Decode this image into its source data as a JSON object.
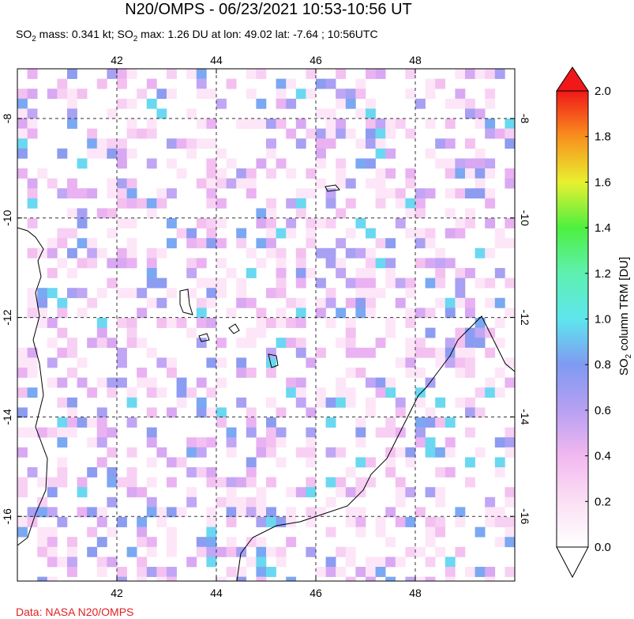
{
  "header": {
    "title": "N20/OMPS - 06/23/2021 10:53-10:56 UT",
    "subtitle": {
      "parts": [
        "SO",
        "2",
        " mass: 0.341 kt; SO",
        "2",
        " max: 1.26 DU at lon: 49.02 lat: -7.64 ; 10:56UTC"
      ]
    }
  },
  "map": {
    "lonlim": [
      40,
      50
    ],
    "latlim": [
      -17.3,
      -7
    ],
    "lonticks": [
      42,
      44,
      46,
      48
    ],
    "latticks": [
      -8,
      -10,
      -12,
      -14,
      -16
    ]
  },
  "colorbar": {
    "label": {
      "parts": [
        "SO",
        "2",
        " column TRM [DU]"
      ]
    },
    "lim": [
      0,
      2
    ],
    "ticks": [
      {
        "value": 0,
        "label": "0.0"
      },
      {
        "value": 0.2,
        "label": "0.2"
      },
      {
        "value": 0.4,
        "label": "0.4"
      },
      {
        "value": 0.6,
        "label": "0.6"
      },
      {
        "value": 0.8,
        "label": "0.8"
      },
      {
        "value": 1.0,
        "label": "1.0"
      },
      {
        "value": 1.2,
        "label": "1.2"
      },
      {
        "value": 1.4,
        "label": "1.4"
      },
      {
        "value": 1.6,
        "label": "1.6"
      },
      {
        "value": 1.8,
        "label": "1.8"
      },
      {
        "value": 2.0,
        "label": "2.0"
      }
    ]
  },
  "footer": {
    "credit": "Data: NASA N20/OMPS"
  }
}
